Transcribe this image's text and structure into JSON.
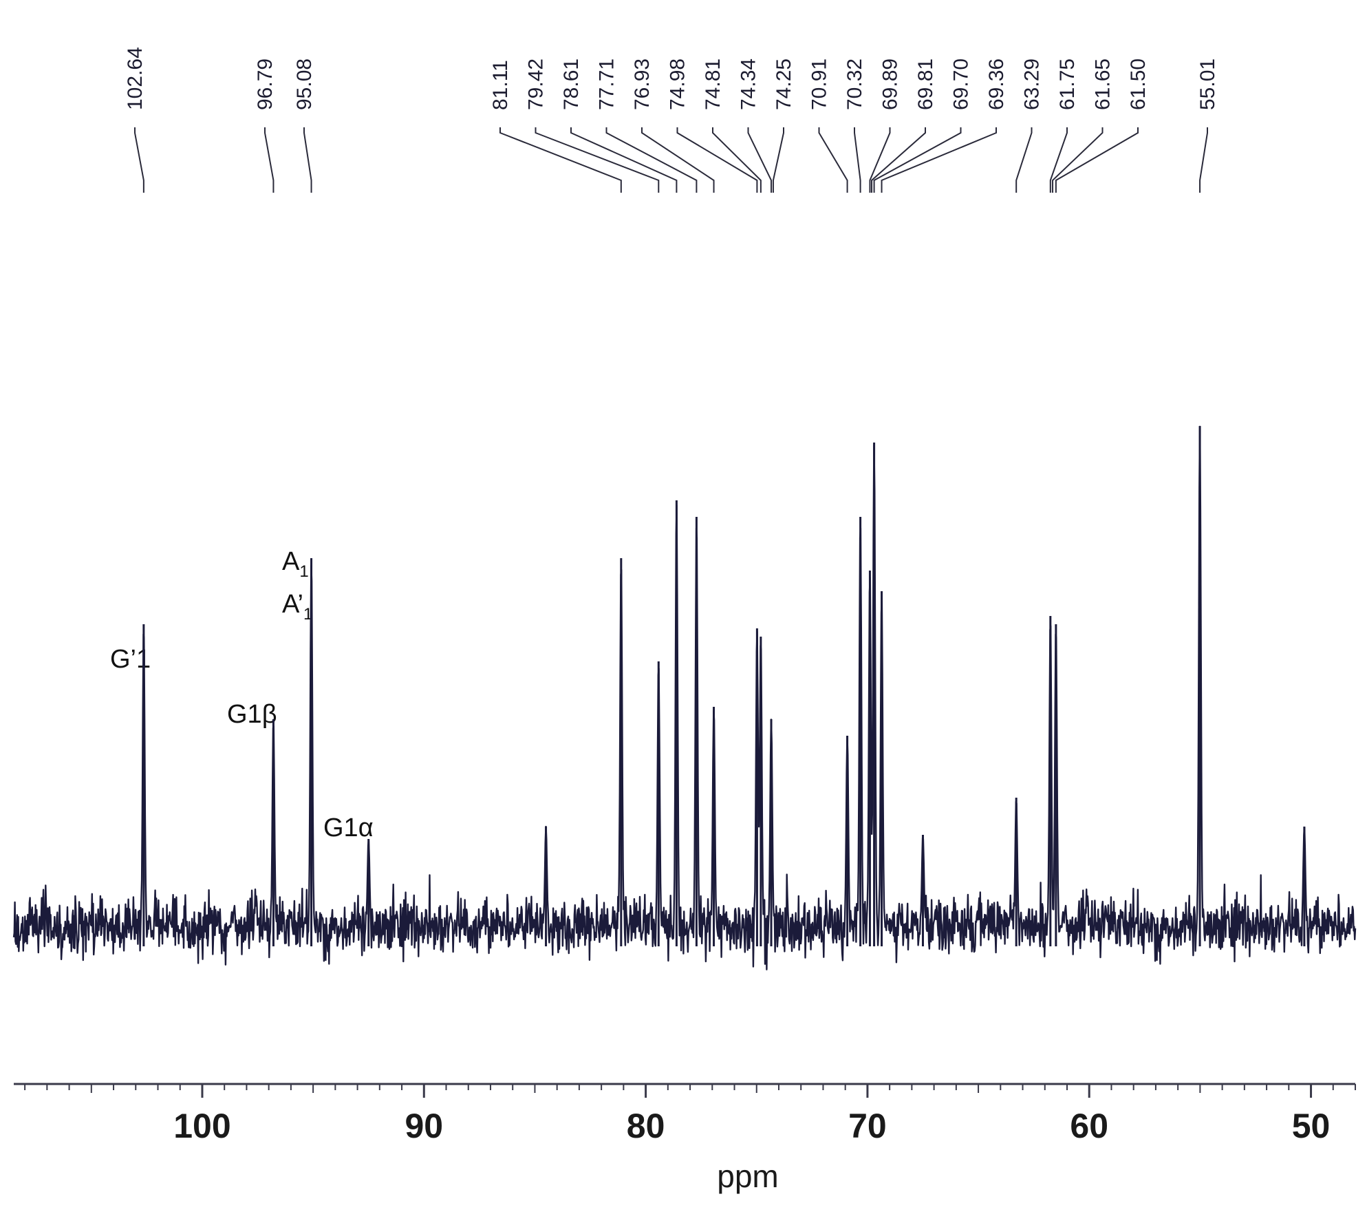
{
  "chart_data": {
    "type": "line",
    "xlabel": "ppm",
    "xlim": [
      108.5,
      48.0
    ],
    "x_reversed": true,
    "x_ticks": [
      100,
      90,
      80,
      70,
      60,
      50
    ],
    "x_tick_labels": [
      "100",
      "90",
      "80",
      "70",
      "60",
      "50"
    ],
    "minor_tick_step": 1,
    "grid": false,
    "line_color": "#1b1b3a",
    "peak_list": [
      {
        "label": "102.64",
        "ppm": 102.64
      },
      {
        "label": "96.79",
        "ppm": 96.79
      },
      {
        "label": "95.08",
        "ppm": 95.08
      },
      {
        "label": "81.11",
        "ppm": 81.11
      },
      {
        "label": "79.42",
        "ppm": 79.42
      },
      {
        "label": "78.61",
        "ppm": 78.61
      },
      {
        "label": "77.71",
        "ppm": 77.71
      },
      {
        "label": "76.93",
        "ppm": 76.93
      },
      {
        "label": "74.98",
        "ppm": 74.98
      },
      {
        "label": "74.81",
        "ppm": 74.81
      },
      {
        "label": "74.34",
        "ppm": 74.34
      },
      {
        "label": "74.25",
        "ppm": 74.25
      },
      {
        "label": "70.91",
        "ppm": 70.91
      },
      {
        "label": "70.32",
        "ppm": 70.32
      },
      {
        "label": "69.89",
        "ppm": 69.89
      },
      {
        "label": "69.81",
        "ppm": 69.81
      },
      {
        "label": "69.70",
        "ppm": 69.7
      },
      {
        "label": "69.36",
        "ppm": 69.36
      },
      {
        "label": "63.29",
        "ppm": 63.29
      },
      {
        "label": "61.75",
        "ppm": 61.75
      },
      {
        "label": "61.65",
        "ppm": 61.65
      },
      {
        "label": "61.50",
        "ppm": 61.5
      },
      {
        "label": "55.01",
        "ppm": 55.01
      }
    ],
    "peaks": [
      {
        "ppm": 102.64,
        "intensity": 0.73
      },
      {
        "ppm": 96.79,
        "intensity": 0.5
      },
      {
        "ppm": 95.08,
        "intensity": 0.89
      },
      {
        "ppm": 92.5,
        "intensity": 0.21
      },
      {
        "ppm": 84.5,
        "intensity": 0.24
      },
      {
        "ppm": 81.11,
        "intensity": 0.89
      },
      {
        "ppm": 79.42,
        "intensity": 0.64
      },
      {
        "ppm": 78.61,
        "intensity": 1.03
      },
      {
        "ppm": 77.71,
        "intensity": 0.99
      },
      {
        "ppm": 76.93,
        "intensity": 0.53
      },
      {
        "ppm": 74.98,
        "intensity": 0.72
      },
      {
        "ppm": 74.81,
        "intensity": 0.7
      },
      {
        "ppm": 74.34,
        "intensity": 0.5
      },
      {
        "ppm": 70.91,
        "intensity": 0.46
      },
      {
        "ppm": 70.32,
        "intensity": 0.99
      },
      {
        "ppm": 69.89,
        "intensity": 0.86
      },
      {
        "ppm": 69.7,
        "intensity": 1.17
      },
      {
        "ppm": 69.36,
        "intensity": 0.81
      },
      {
        "ppm": 67.5,
        "intensity": 0.22
      },
      {
        "ppm": 63.29,
        "intensity": 0.31
      },
      {
        "ppm": 61.75,
        "intensity": 0.75
      },
      {
        "ppm": 61.5,
        "intensity": 0.73
      },
      {
        "ppm": 55.01,
        "intensity": 1.21
      },
      {
        "ppm": 50.3,
        "intensity": 0.24
      }
    ],
    "annotations": [
      {
        "id": "g-prime-1",
        "text": "G’1",
        "ppm": 102.64
      },
      {
        "id": "g1-beta",
        "text": "G1β",
        "ppm": 96.79
      },
      {
        "id": "a1",
        "text": "A",
        "sub": "1",
        "ppm": 95.08
      },
      {
        "id": "a-prime-1",
        "text": "A’",
        "sub": "1",
        "ppm": 95.08
      },
      {
        "id": "g1-alpha",
        "text": "G1α",
        "ppm": 92.5
      }
    ]
  }
}
